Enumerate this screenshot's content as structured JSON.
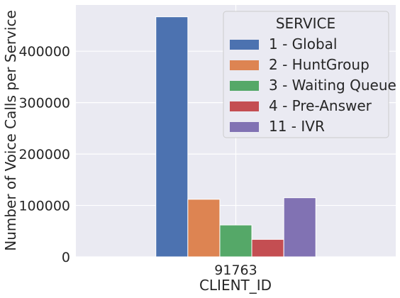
{
  "chart_data": {
    "type": "bar",
    "categories": [
      "91763"
    ],
    "xlabel": "CLIENT_ID",
    "ylabel": "Number of Voice Calls per Service",
    "ylim": [
      0,
      490000
    ],
    "yticks": [
      0,
      100000,
      200000,
      300000,
      400000
    ],
    "grid": true,
    "legend": {
      "title": "SERVICE",
      "placement": "top-right"
    },
    "series": [
      {
        "name": "1 - Global",
        "color": "#4c72b0",
        "values": [
          467000
        ]
      },
      {
        "name": "2 - HuntGroup",
        "color": "#dd8452",
        "values": [
          112000
        ]
      },
      {
        "name": "3 - Waiting Queue",
        "color": "#55a868",
        "values": [
          62000
        ]
      },
      {
        "name": "4 - Pre-Answer",
        "color": "#c44e52",
        "values": [
          34000
        ]
      },
      {
        "name": "11 - IVR",
        "color": "#8172b3",
        "values": [
          115000
        ]
      }
    ]
  },
  "colors": {
    "plot_background": "#eaeaf2",
    "grid": "#ffffff",
    "text": "#262626"
  }
}
